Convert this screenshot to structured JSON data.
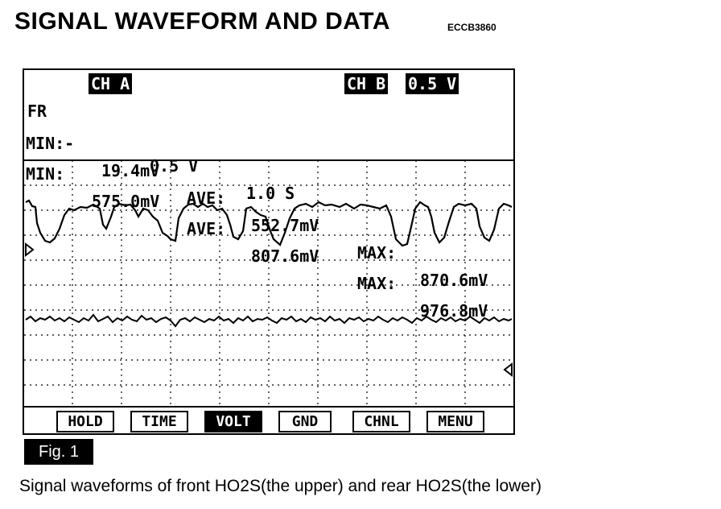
{
  "page": {
    "title": "SIGNAL WAVEFORM AND DATA",
    "code": "ECCB3860",
    "fig_label": "Fig. 1",
    "caption": "Signal waveforms of front HO2S(the upper) and rear HO2S(the lower)"
  },
  "scope": {
    "header": {
      "fr": "FR",
      "ch_a": "CH A",
      "ch_a_scale": "0.5 V",
      "time": "1.0 S",
      "ch_b": "CH B",
      "ch_b_scale": "0.5 V"
    },
    "row_a": {
      "min_label": "MIN:-",
      "min_value": "19.4mV",
      "ave_label": "AVE:",
      "ave_value": "552.7mV",
      "max_label": "MAX:",
      "max_value": "870.6mV"
    },
    "row_b": {
      "min_label": "MIN:",
      "min_value": "575.0mV",
      "ave_label": "AVE:",
      "ave_value": "807.6mV",
      "max_label": "MAX:",
      "max_value": "976.8mV"
    },
    "buttons": [
      {
        "label": "HOLD",
        "active": false
      },
      {
        "label": "TIME",
        "active": false
      },
      {
        "label": "VOLT",
        "active": true
      },
      {
        "label": "GND",
        "active": false
      },
      {
        "label": "CHNL",
        "active": false
      },
      {
        "label": "MENU",
        "active": false
      }
    ],
    "channel_a_marker": "channel-a-ground-marker",
    "channel_b_marker": "channel-b-ground-marker"
  }
}
